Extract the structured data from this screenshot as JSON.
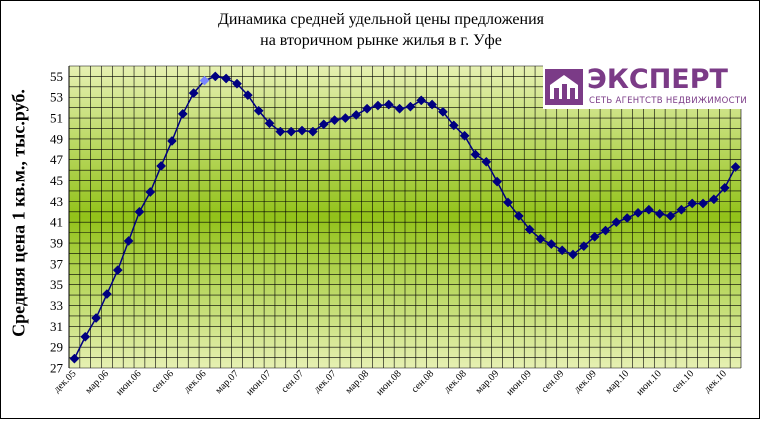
{
  "title_line1": "Динамика средней удельной цены предложения",
  "title_line2": "на вторичном рынке жилья в г. Уфе",
  "logo": {
    "word": "ЭКСПЕРТ",
    "tagline": "СЕТЬ АГЕНТСТВ НЕДВИЖИМОСТИ"
  },
  "colors": {
    "line": "#000080",
    "marker": "#000080",
    "highlight_marker": "#7b86ff",
    "plot_band_outer": "#e6f0b2",
    "plot_band_inner": "#92c219",
    "grid": "#000000",
    "logo": "#7b3b87"
  },
  "chart_data": {
    "type": "line",
    "title": "Динамика средней удельной цены предложения на вторичном рынке жилья в г. Уфе",
    "xlabel": "",
    "ylabel": "Средняя цена 1 кв.м., тыс.руб.",
    "ylim": [
      27,
      56
    ],
    "yticks": [
      27,
      29,
      31,
      33,
      35,
      37,
      39,
      41,
      43,
      45,
      47,
      49,
      51,
      53,
      55
    ],
    "xtick_labels": [
      "дек.05",
      "мар.06",
      "июн.06",
      "сен.06",
      "дек.06",
      "мар.07",
      "июн.07",
      "сен.07",
      "дек.07",
      "мар.08",
      "июн.08",
      "сен.08",
      "дек.08",
      "мар.09",
      "июн.09",
      "сен.09",
      "дек.09",
      "мар.10",
      "июн.10",
      "сен.10",
      "дек.10"
    ],
    "grid": true,
    "legend": "none",
    "highlight_index": 12,
    "values": [
      27.9,
      30.0,
      31.8,
      34.1,
      36.4,
      39.2,
      42.0,
      43.9,
      46.4,
      48.8,
      51.4,
      53.4,
      54.6,
      55.0,
      54.8,
      54.3,
      53.2,
      51.7,
      50.5,
      49.7,
      49.7,
      49.8,
      49.7,
      50.4,
      50.8,
      51.0,
      51.3,
      51.9,
      52.2,
      52.3,
      51.9,
      52.1,
      52.7,
      52.3,
      51.6,
      50.3,
      49.3,
      47.5,
      46.8,
      44.9,
      42.9,
      41.6,
      40.3,
      39.4,
      38.9,
      38.3,
      37.9,
      38.7,
      39.6,
      40.2,
      41.0,
      41.4,
      41.9,
      42.2,
      41.8,
      41.6,
      42.2,
      42.8,
      42.8,
      43.2,
      44.3,
      46.3
    ]
  }
}
